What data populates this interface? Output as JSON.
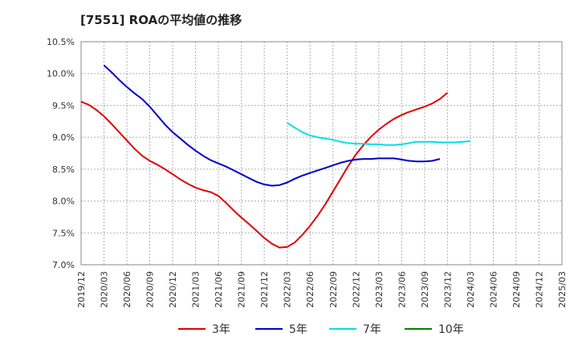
{
  "chart_data": {
    "type": "line",
    "title": "[7551]  ROAの平均値の推移",
    "xlabel": "",
    "ylabel": "",
    "ylim": [
      7.0,
      10.5
    ],
    "grid": true,
    "legend_position": "bottom",
    "y_ticks": [
      "7.0%",
      "7.5%",
      "8.0%",
      "8.5%",
      "9.0%",
      "9.5%",
      "10.0%",
      "10.5%"
    ],
    "y_tick_values": [
      7.0,
      7.5,
      8.0,
      8.5,
      9.0,
      9.5,
      10.0,
      10.5
    ],
    "x_ticks": [
      "2019/12",
      "2020/03",
      "2020/06",
      "2020/09",
      "2020/12",
      "2021/03",
      "2021/06",
      "2021/09",
      "2021/12",
      "2022/03",
      "2022/06",
      "2022/09",
      "2022/12",
      "2023/03",
      "2023/06",
      "2023/09",
      "2023/12",
      "2024/03",
      "2024/06",
      "2024/09",
      "2024/12",
      "2025/03"
    ],
    "series": [
      {
        "name": "3年",
        "color": "#e00000",
        "start_index": 0,
        "values": [
          9.56,
          9.51,
          9.43,
          9.33,
          9.21,
          9.08,
          8.95,
          8.82,
          8.71,
          8.63,
          8.57,
          8.5,
          8.42,
          8.34,
          8.27,
          8.21,
          8.17,
          8.14,
          8.08,
          7.97,
          7.85,
          7.74,
          7.64,
          7.53,
          7.42,
          7.33,
          7.27,
          7.28,
          7.35,
          7.47,
          7.61,
          7.77,
          7.95,
          8.15,
          8.35,
          8.55,
          8.73,
          8.88,
          9.01,
          9.12,
          9.21,
          9.29,
          9.35,
          9.4,
          9.44,
          9.48,
          9.53,
          9.6,
          9.7
        ]
      },
      {
        "name": "5年",
        "color": "#0000c8",
        "start_index": 3,
        "values": [
          10.13,
          10.02,
          9.9,
          9.79,
          9.69,
          9.6,
          9.48,
          9.34,
          9.2,
          9.08,
          8.98,
          8.88,
          8.79,
          8.71,
          8.64,
          8.59,
          8.54,
          8.48,
          8.42,
          8.36,
          8.3,
          8.26,
          8.24,
          8.25,
          8.29,
          8.35,
          8.4,
          8.44,
          8.48,
          8.52,
          8.56,
          8.6,
          8.63,
          8.65,
          8.66,
          8.66,
          8.67,
          8.67,
          8.67,
          8.65,
          8.63,
          8.62,
          8.62,
          8.63,
          8.66
        ]
      },
      {
        "name": "7年",
        "color": "#00e0e0",
        "start_index": 27,
        "values": [
          9.23,
          9.15,
          9.08,
          9.03,
          9.0,
          8.98,
          8.96,
          8.93,
          8.91,
          8.9,
          8.9,
          8.89,
          8.89,
          8.88,
          8.88,
          8.89,
          8.91,
          8.93,
          8.93,
          8.93,
          8.92,
          8.92,
          8.92,
          8.93,
          8.94
        ]
      },
      {
        "name": "10年",
        "color": "#008000",
        "start_index": 0,
        "values": []
      }
    ]
  }
}
